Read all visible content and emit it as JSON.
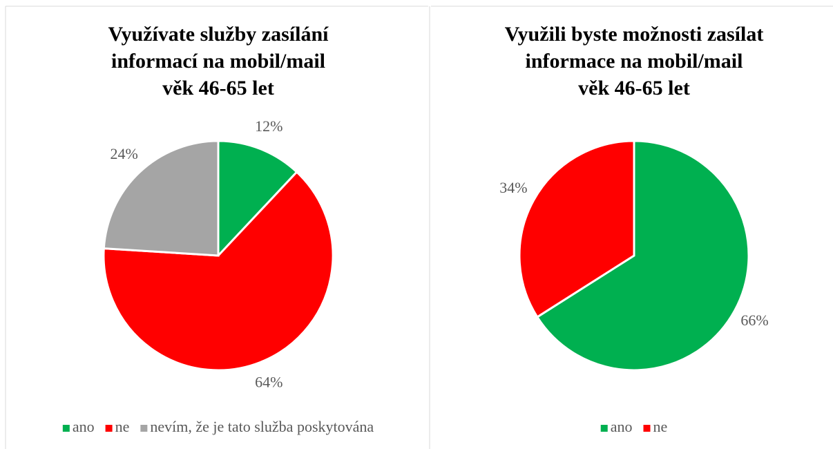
{
  "chart_data": [
    {
      "type": "pie",
      "title": [
        "Využívate služby zasílání",
        "informací na mobil/mail",
        "věk 46-65 let"
      ],
      "categories": [
        "ano",
        "ne",
        "nevím, že je tato služba poskytována"
      ],
      "values": [
        12,
        64,
        24
      ],
      "value_labels": [
        "12%",
        "64%",
        "24%"
      ],
      "colors": [
        "#00b050",
        "#ff0000",
        "#a5a5a5"
      ],
      "legend": "bottom"
    },
    {
      "type": "pie",
      "title": [
        "Využili byste možnosti zasílat",
        "informace na mobil/mail",
        "věk 46-65 let"
      ],
      "categories": [
        "ano",
        "ne"
      ],
      "values": [
        66,
        34
      ],
      "value_labels": [
        "66%",
        "34%"
      ],
      "colors": [
        "#00b050",
        "#ff0000"
      ],
      "legend": "bottom"
    }
  ]
}
